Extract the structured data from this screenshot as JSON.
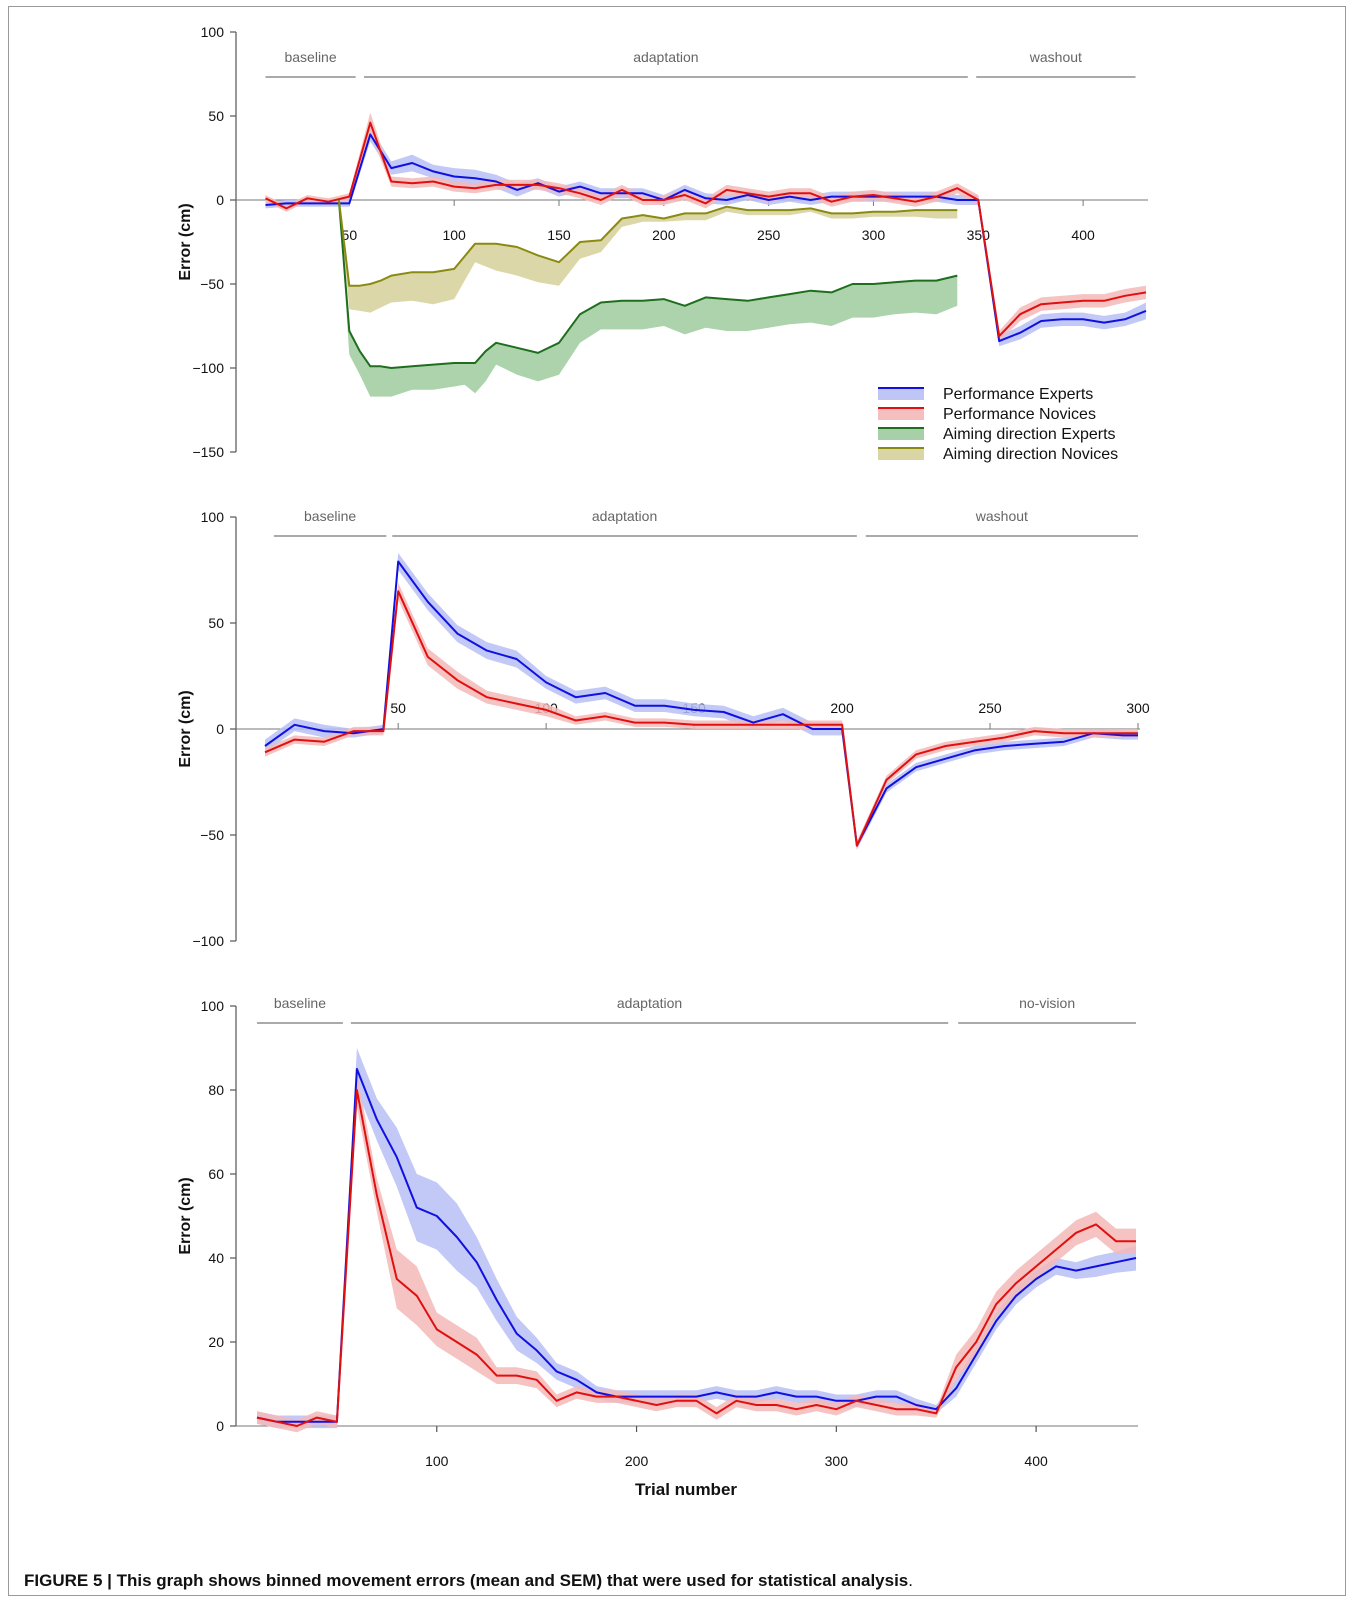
{
  "caption": {
    "label": "FIGURE 5 | This graph shows binned movement errors (mean and SEM) that were used for statistical analysis",
    "end": "."
  },
  "legend": {
    "entries": [
      {
        "name": "Performance Experts",
        "color": "#1010e0"
      },
      {
        "name": "Performance Novices",
        "color": "#e01010"
      },
      {
        "name": "Aiming direction Experts",
        "color": "#1e6e1e"
      },
      {
        "name": "Aiming direction Novices",
        "color": "#8a8a10"
      }
    ]
  },
  "colors": {
    "experts": "#1010e0",
    "experts_band": "#b8c0f5",
    "novices": "#e01010",
    "novices_band": "#f5b8b8",
    "aim_experts": "#1e6e1e",
    "aim_experts_band": "#9fcb9f",
    "aim_novices": "#8a8a10",
    "aim_novices_band": "#d6d09a"
  },
  "chart_data": [
    {
      "type": "line",
      "ylabel": "Error (cm)",
      "ylim": [
        -150,
        100
      ],
      "xlim": [
        5,
        430
      ],
      "yticks": [
        100,
        50,
        0,
        -50,
        -100,
        -150
      ],
      "xticks": [
        50,
        100,
        150,
        200,
        250,
        300,
        350,
        400
      ],
      "phases": [
        {
          "label": "baseline",
          "from": 10,
          "to": 53
        },
        {
          "label": "adaptation",
          "from": 57,
          "to": 345
        },
        {
          "label": "washout",
          "from": 349,
          "to": 425
        }
      ],
      "series": [
        {
          "name": "Performance Experts",
          "color_key": "experts",
          "x": [
            10,
            20,
            30,
            40,
            50,
            60,
            70,
            80,
            90,
            100,
            110,
            120,
            130,
            140,
            150,
            160,
            170,
            180,
            190,
            200,
            210,
            220,
            230,
            240,
            250,
            260,
            270,
            280,
            290,
            300,
            310,
            320,
            330,
            340,
            350,
            360,
            370,
            380,
            390,
            400,
            410,
            420,
            430
          ],
          "y": [
            -3,
            -2,
            -2,
            -2,
            -2,
            39,
            19,
            22,
            17,
            14,
            13,
            11,
            6,
            10,
            5,
            8,
            4,
            4,
            4,
            0,
            6,
            1,
            0,
            3,
            0,
            2,
            0,
            2,
            2,
            2,
            2,
            2,
            2,
            0,
            0,
            -84,
            -79,
            -72,
            -71,
            -71,
            -73,
            -71,
            -66
          ],
          "band": [
            2,
            2,
            2,
            2,
            2,
            4,
            4,
            5,
            4,
            5,
            5,
            4,
            4,
            3,
            3,
            3,
            3,
            3,
            3,
            3,
            3,
            3,
            3,
            3,
            3,
            3,
            3,
            3,
            3,
            3,
            3,
            3,
            3,
            3,
            3,
            3,
            4,
            4,
            4,
            4,
            4,
            4,
            5
          ]
        },
        {
          "name": "Performance Novices",
          "color_key": "novices",
          "x": [
            10,
            20,
            30,
            40,
            50,
            60,
            70,
            80,
            90,
            100,
            110,
            120,
            130,
            140,
            150,
            160,
            170,
            180,
            190,
            200,
            210,
            220,
            230,
            240,
            250,
            260,
            270,
            280,
            290,
            300,
            310,
            320,
            330,
            340,
            350,
            360,
            370,
            380,
            390,
            400,
            410,
            420,
            430
          ],
          "y": [
            1,
            -5,
            1,
            -1,
            2,
            46,
            11,
            10,
            11,
            8,
            7,
            9,
            9,
            9,
            7,
            4,
            0,
            6,
            0,
            0,
            3,
            -2,
            6,
            4,
            2,
            4,
            4,
            -1,
            2,
            3,
            1,
            -1,
            2,
            7,
            0,
            -81,
            -68,
            -62,
            -61,
            -60,
            -60,
            -57,
            -55
          ],
          "band": [
            2,
            2,
            2,
            2,
            2,
            6,
            3,
            3,
            3,
            3,
            3,
            3,
            3,
            3,
            3,
            3,
            3,
            3,
            3,
            3,
            3,
            3,
            3,
            3,
            3,
            3,
            3,
            3,
            3,
            3,
            3,
            3,
            3,
            3,
            3,
            3,
            4,
            4,
            4,
            4,
            4,
            4,
            4
          ]
        },
        {
          "name": "Aiming direction Experts",
          "color_key": "aim_experts",
          "x": [
            45,
            50,
            55,
            60,
            65,
            70,
            80,
            90,
            100,
            105,
            110,
            115,
            120,
            130,
            140,
            150,
            160,
            170,
            180,
            190,
            200,
            210,
            220,
            230,
            240,
            250,
            260,
            270,
            280,
            290,
            300,
            310,
            320,
            330,
            340
          ],
          "y": [
            0,
            -78,
            -90,
            -99,
            -99,
            -100,
            -99,
            -98,
            -97,
            -97,
            -97,
            -90,
            -85,
            -88,
            -91,
            -85,
            -68,
            -61,
            -60,
            -60,
            -59,
            -63,
            -58,
            -59,
            -60,
            -58,
            -56,
            -54,
            -55,
            -50,
            -50,
            -49,
            -48,
            -48,
            -45
          ],
          "lower": [
            0,
            -92,
            -104,
            -117,
            -117,
            -117,
            -113,
            -113,
            -111,
            -110,
            -115,
            -108,
            -98,
            -104,
            -108,
            -104,
            -85,
            -77,
            -77,
            -77,
            -75,
            -80,
            -76,
            -78,
            -78,
            -76,
            -74,
            -73,
            -75,
            -70,
            -70,
            -68,
            -67,
            -68,
            -63
          ]
        },
        {
          "name": "Aiming direction Novices",
          "color_key": "aim_novices",
          "x": [
            45,
            50,
            55,
            60,
            65,
            70,
            80,
            90,
            100,
            110,
            120,
            130,
            140,
            150,
            160,
            170,
            180,
            190,
            200,
            210,
            220,
            230,
            240,
            250,
            260,
            270,
            280,
            290,
            300,
            310,
            320,
            330,
            340
          ],
          "y": [
            0,
            -51,
            -51,
            -50,
            -48,
            -45,
            -43,
            -43,
            -41,
            -26,
            -26,
            -28,
            -33,
            -37,
            -25,
            -24,
            -11,
            -9,
            -11,
            -8,
            -8,
            -4,
            -6,
            -6,
            -6,
            -5,
            -8,
            -8,
            -7,
            -7,
            -6,
            -6,
            -6
          ],
          "lower": [
            0,
            -65,
            -66,
            -67,
            -64,
            -61,
            -60,
            -62,
            -59,
            -37,
            -42,
            -45,
            -49,
            -51,
            -35,
            -31,
            -16,
            -13,
            -13,
            -12,
            -12,
            -7,
            -9,
            -9,
            -9,
            -7,
            -11,
            -11,
            -10,
            -10,
            -10,
            -11,
            -11
          ]
        }
      ]
    },
    {
      "type": "line",
      "ylabel": "Error (cm)",
      "ylim": [
        -100,
        100
      ],
      "xlim": [
        5,
        300
      ],
      "yticks": [
        100,
        50,
        0,
        -50,
        -100
      ],
      "xticks": [
        50,
        100,
        150,
        200,
        250,
        300
      ],
      "phases": [
        {
          "label": "baseline",
          "from": 8,
          "to": 46
        },
        {
          "label": "adaptation",
          "from": 48,
          "to": 205
        },
        {
          "label": "washout",
          "from": 208,
          "to": 300
        }
      ],
      "series": [
        {
          "name": "Performance Experts",
          "color_key": "experts",
          "x": [
            5,
            15,
            25,
            35,
            45,
            50,
            60,
            70,
            80,
            90,
            100,
            110,
            120,
            130,
            140,
            150,
            160,
            170,
            180,
            190,
            200,
            205,
            215,
            225,
            235,
            245,
            255,
            265,
            275,
            285,
            295,
            300
          ],
          "y": [
            -8,
            2,
            -1,
            -2,
            0,
            79,
            60,
            45,
            37,
            33,
            22,
            15,
            17,
            11,
            11,
            9,
            8,
            3,
            7,
            0,
            0,
            -55,
            -28,
            -18,
            -14,
            -10,
            -8,
            -7,
            -6,
            -2,
            -3,
            -3
          ],
          "band": [
            3,
            3,
            3,
            2,
            2,
            4,
            4,
            4,
            4,
            4,
            3,
            3,
            3,
            3,
            3,
            3,
            3,
            3,
            3,
            3,
            3,
            2,
            2,
            2,
            2,
            2,
            2,
            2,
            2,
            2,
            2,
            2
          ]
        },
        {
          "name": "Performance Novices",
          "color_key": "novices",
          "x": [
            5,
            15,
            25,
            35,
            45,
            50,
            60,
            70,
            80,
            90,
            100,
            110,
            120,
            130,
            140,
            150,
            160,
            170,
            180,
            190,
            200,
            205,
            215,
            225,
            235,
            245,
            255,
            265,
            275,
            285,
            295,
            300
          ],
          "y": [
            -11,
            -5,
            -6,
            -1,
            -1,
            65,
            34,
            23,
            15,
            12,
            9,
            4,
            6,
            3,
            3,
            2,
            2,
            2,
            2,
            2,
            2,
            -55,
            -24,
            -12,
            -8,
            -6,
            -4,
            -1,
            -2,
            -2,
            -2,
            -2
          ],
          "band": [
            2,
            2,
            2,
            2,
            2,
            4,
            4,
            4,
            3,
            3,
            3,
            2,
            2,
            2,
            2,
            2,
            2,
            2,
            2,
            2,
            2,
            2,
            2,
            2,
            2,
            2,
            2,
            2,
            2,
            2,
            2,
            2
          ]
        }
      ]
    },
    {
      "type": "line",
      "xlabel": "Trial number",
      "ylabel": "Error (cm)",
      "ylim": [
        0,
        100
      ],
      "xlim": [
        0,
        450
      ],
      "yticks": [
        100,
        80,
        60,
        40,
        20,
        0
      ],
      "xticks": [
        100,
        200,
        300,
        400
      ],
      "phases": [
        {
          "label": "baseline",
          "from": 10,
          "to": 53
        },
        {
          "label": "adaptation",
          "from": 57,
          "to": 356
        },
        {
          "label": "no-vision",
          "from": 361,
          "to": 450
        }
      ],
      "series": [
        {
          "name": "Performance Experts",
          "color_key": "experts",
          "x": [
            10,
            20,
            30,
            40,
            50,
            60,
            70,
            80,
            90,
            100,
            110,
            120,
            130,
            140,
            150,
            160,
            170,
            180,
            190,
            200,
            210,
            220,
            230,
            240,
            250,
            260,
            270,
            280,
            290,
            300,
            310,
            320,
            330,
            340,
            350,
            360,
            370,
            380,
            390,
            400,
            410,
            420,
            430,
            440,
            450
          ],
          "y": [
            2,
            1,
            1,
            1,
            1,
            85,
            73,
            64,
            52,
            50,
            45,
            39,
            30,
            22,
            18,
            13,
            11,
            8,
            7,
            7,
            7,
            7,
            7,
            8,
            7,
            7,
            8,
            7,
            7,
            6,
            6,
            7,
            7,
            5,
            4,
            9,
            17,
            25,
            31,
            35,
            38,
            37,
            38,
            39,
            40
          ],
          "band": [
            1.5,
            1.5,
            1.5,
            1.5,
            1.5,
            5,
            5,
            7,
            8,
            8,
            8,
            6,
            5,
            4,
            3,
            2,
            2,
            1.5,
            1.5,
            1.5,
            1.5,
            1.5,
            1.5,
            1.5,
            1.5,
            1.5,
            1.5,
            1.5,
            1.5,
            1.5,
            1.5,
            1.5,
            1.5,
            1.5,
            1,
            2,
            2,
            2,
            2,
            2,
            2,
            2,
            2.5,
            2.5,
            3
          ]
        },
        {
          "name": "Performance Novices",
          "color_key": "novices",
          "x": [
            10,
            20,
            30,
            40,
            50,
            60,
            70,
            80,
            90,
            100,
            110,
            120,
            130,
            140,
            150,
            160,
            170,
            180,
            190,
            200,
            210,
            220,
            230,
            240,
            250,
            260,
            270,
            280,
            290,
            300,
            310,
            320,
            330,
            340,
            350,
            360,
            370,
            380,
            390,
            400,
            410,
            420,
            430,
            440,
            450
          ],
          "y": [
            2,
            1,
            0,
            2,
            1,
            80,
            55,
            35,
            31,
            23,
            20,
            17,
            12,
            12,
            11,
            6,
            8,
            7,
            7,
            6,
            5,
            6,
            6,
            3,
            6,
            5,
            5,
            4,
            5,
            4,
            6,
            5,
            4,
            4,
            3,
            14,
            20,
            29,
            34,
            38,
            42,
            46,
            48,
            44,
            44
          ],
          "band": [
            1.5,
            1.5,
            1.5,
            1.5,
            1.5,
            4,
            4,
            7,
            7,
            4,
            4,
            4,
            2,
            2,
            2,
            1.5,
            1.5,
            1.5,
            1.5,
            1.5,
            1.5,
            1.5,
            1.5,
            1.5,
            1.5,
            1.5,
            1.5,
            1.5,
            1.5,
            1.5,
            1.5,
            1.5,
            1.5,
            1.5,
            1,
            3,
            3,
            3,
            3,
            3,
            3,
            3,
            3,
            3,
            3
          ]
        }
      ]
    }
  ]
}
